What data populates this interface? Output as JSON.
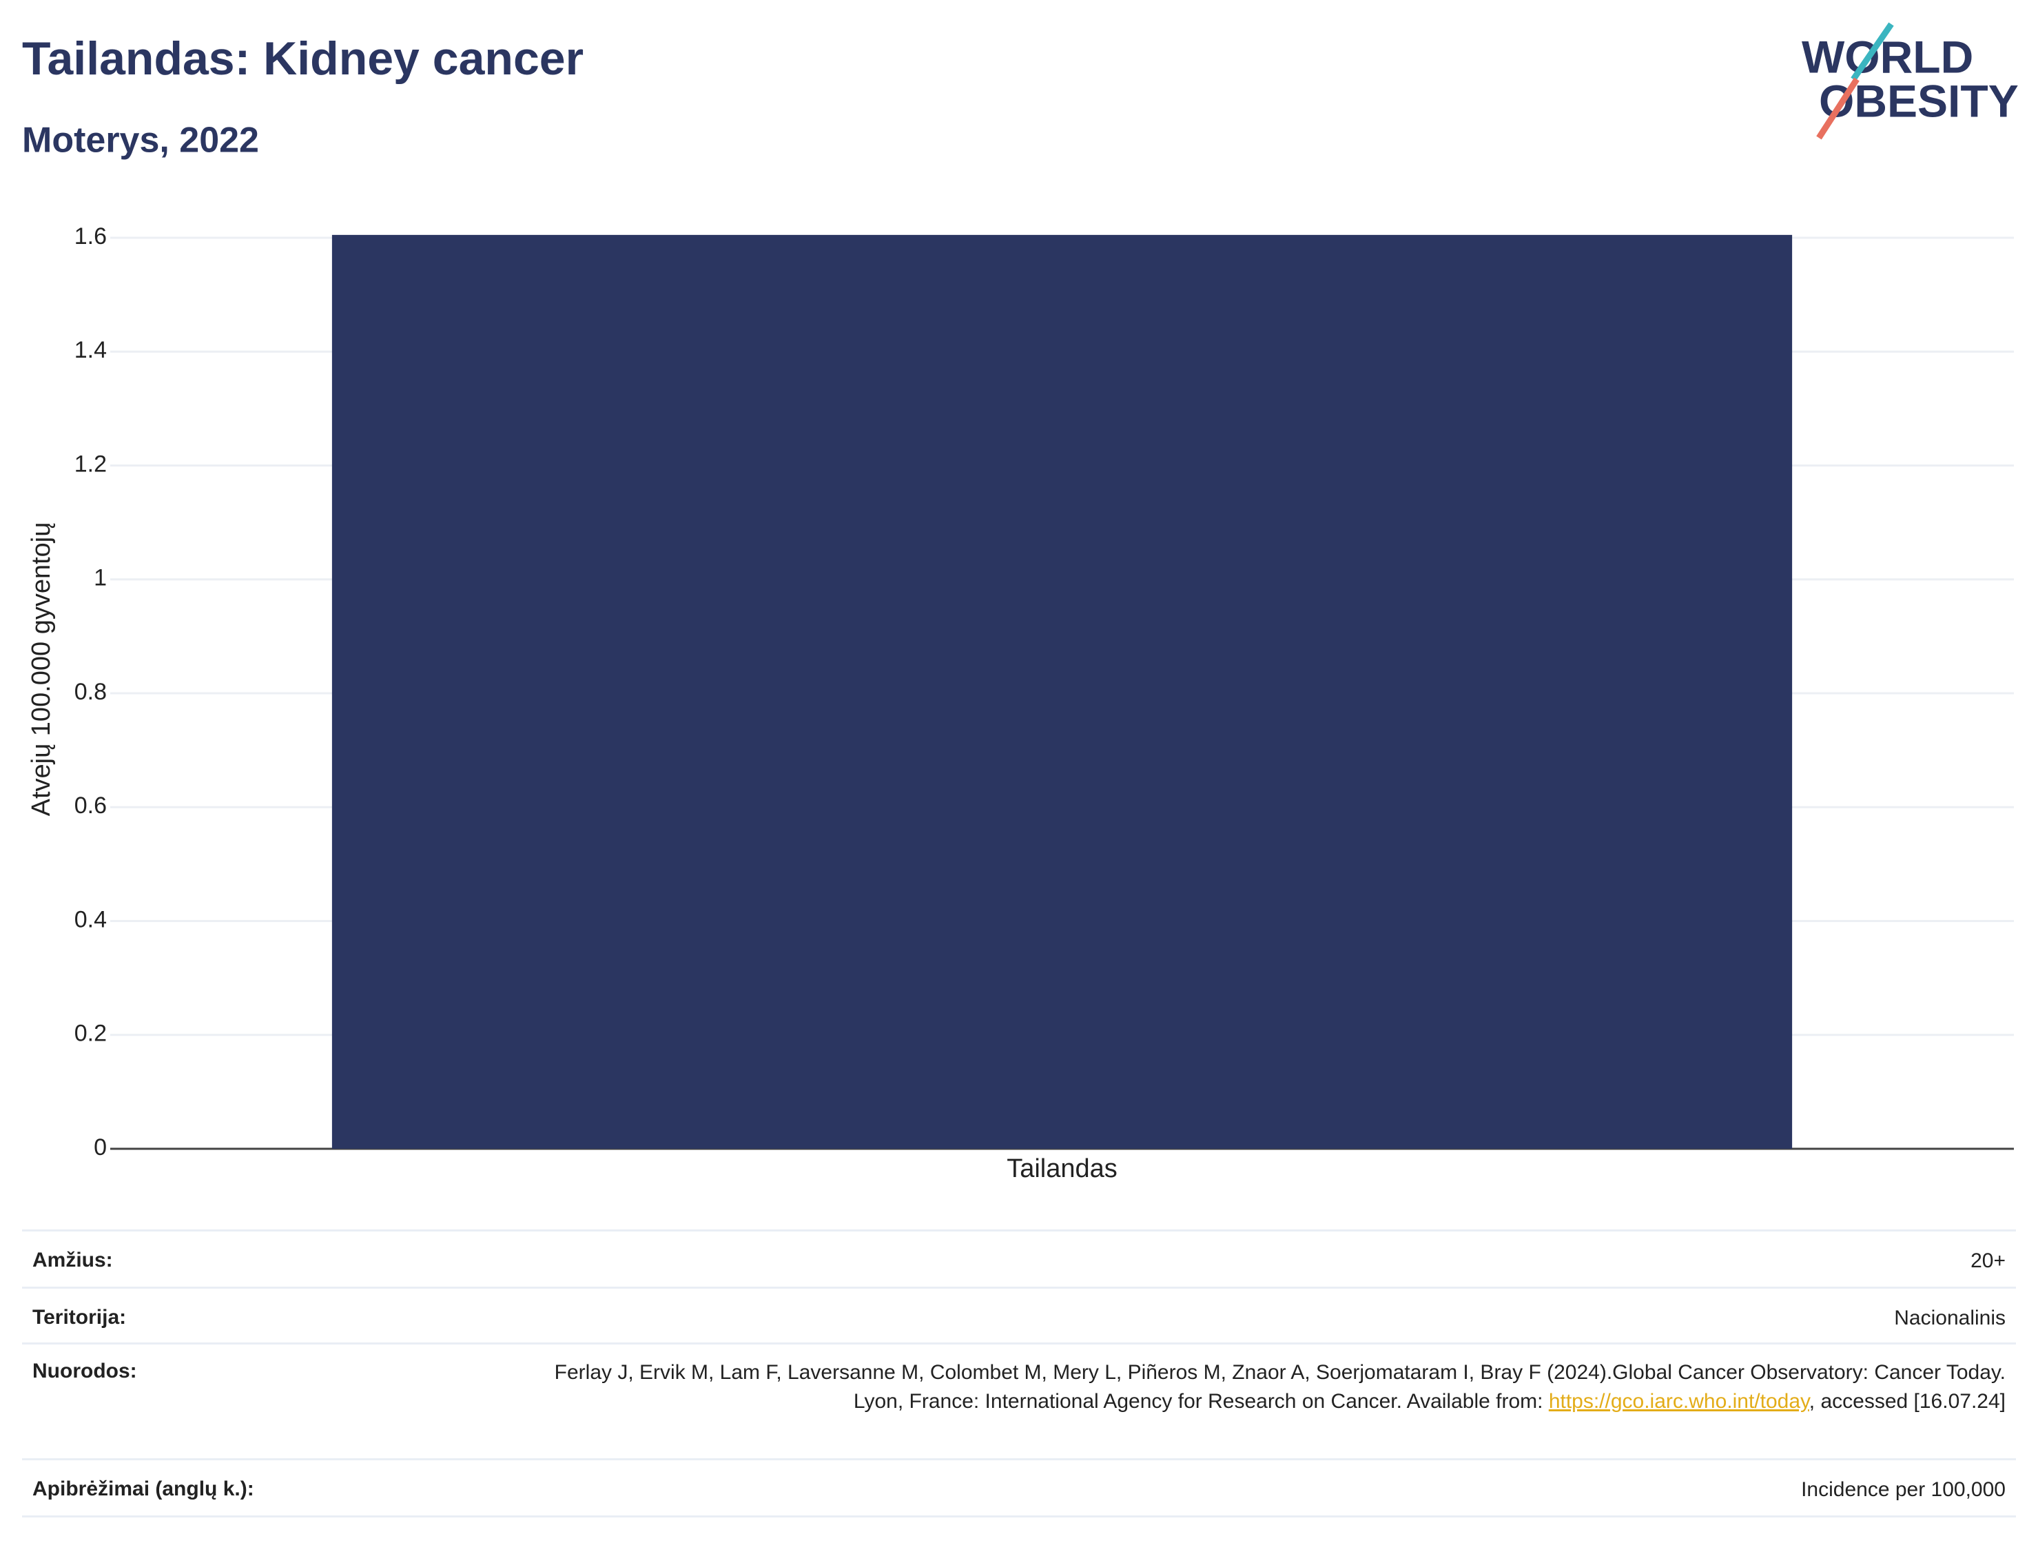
{
  "chart_data": {
    "type": "bar",
    "title": "Tailandas: Kidney cancer",
    "subtitle": "Moterys, 2022",
    "y_label": "Atvejų 100.000 gyventojų",
    "categories": [
      "Tailandas"
    ],
    "values": [
      1.605
    ],
    "color": "#2b3661",
    "ylim": [
      0,
      1.7
    ],
    "yticks": [
      0,
      0.2,
      0.4,
      0.6,
      0.8,
      1,
      1.2,
      1.4,
      1.6
    ],
    "grid": true
  },
  "logo": {
    "line1": "WORLD",
    "line2": "OBESITY"
  },
  "table": {
    "rows": [
      {
        "label": "Amžius:",
        "value": "20+"
      },
      {
        "label": "Teritorija:",
        "value": "Nacionalinis"
      },
      {
        "label": "Nuorodos:",
        "value": "Ferlay J, Ervik M, Lam F, Laversanne M, Colombet M, Mery L, Piñeros M, Znaor A, Soerjomataram I, Bray F (2024).Global Cancer Observatory: Cancer Today. Lyon, France: International Agency for Research on Cancer. Available from:",
        "link": "https://gco.iarc.who.int/today",
        "value_end": ", accessed [16.07.24]"
      },
      {
        "label": "Apibrėžimai (anglų k.):",
        "value": "Incidence per 100,000"
      }
    ]
  }
}
